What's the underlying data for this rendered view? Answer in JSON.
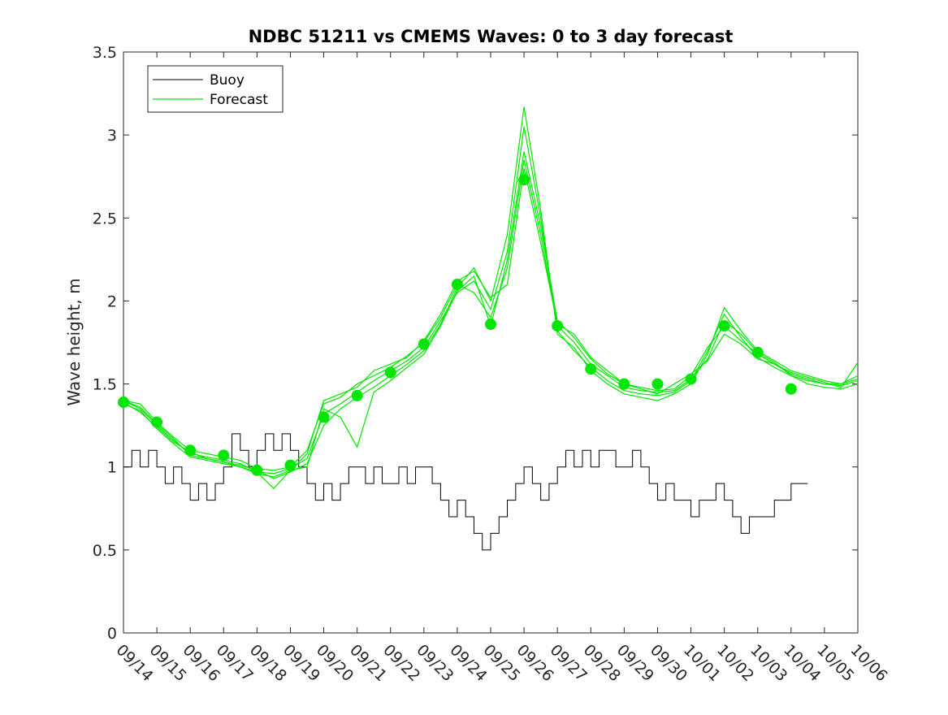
{
  "chart_data": {
    "type": "line",
    "title": "NDBC 51211 vs CMEMS Waves: 0 to 3 day forecast",
    "xlabel": "",
    "ylabel": "Wave height, m",
    "ylim": [
      0,
      3.5
    ],
    "yticks": [
      "0",
      "0.5",
      "1",
      "1.5",
      "2",
      "2.5",
      "3",
      "3.5"
    ],
    "xlim": [
      "09/14",
      "10/06"
    ],
    "xticks": [
      "09/14",
      "09/15",
      "09/16",
      "09/17",
      "09/18",
      "09/19",
      "09/20",
      "09/21",
      "09/22",
      "09/23",
      "09/24",
      "09/25",
      "09/26",
      "09/27",
      "09/28",
      "09/29",
      "09/30",
      "10/01",
      "10/02",
      "10/03",
      "10/04",
      "10/05",
      "10/06"
    ],
    "grid": false,
    "legend": {
      "placement": "top-left",
      "entries": [
        {
          "label": "Buoy",
          "color": "#000000"
        },
        {
          "label": "Forecast",
          "color": "#00e600"
        }
      ]
    },
    "colors": {
      "buoy": "#000000",
      "forecast": "#00e600",
      "axes": "#262626"
    },
    "series": [
      {
        "name": "Buoy",
        "x": [
          0,
          0.25,
          0.5,
          0.75,
          1,
          1.25,
          1.5,
          1.75,
          2,
          2.25,
          2.5,
          2.75,
          3,
          3.25,
          3.5,
          3.75,
          4,
          4.25,
          4.5,
          4.75,
          5,
          5.25,
          5.5,
          5.75,
          6,
          6.25,
          6.5,
          6.75,
          7,
          7.25,
          7.5,
          7.75,
          8,
          8.25,
          8.5,
          8.75,
          9,
          9.25,
          9.5,
          9.75,
          10,
          10.25,
          10.5,
          10.75,
          11,
          11.25,
          11.5,
          11.75,
          12,
          12.25,
          12.5,
          12.75,
          13,
          13.25,
          13.5,
          13.75,
          14,
          14.25,
          14.5,
          14.75,
          15,
          15.25,
          15.5,
          15.75,
          16,
          16.25,
          16.5,
          16.75,
          17,
          17.25,
          17.5,
          17.75,
          18,
          18.25,
          18.5,
          18.75,
          19,
          19.25,
          19.5,
          19.75,
          20,
          20.25
        ],
        "y": [
          1.0,
          1.1,
          1.0,
          1.1,
          1.0,
          0.9,
          1.0,
          0.9,
          0.8,
          0.9,
          0.8,
          0.9,
          1.0,
          1.2,
          1.1,
          1.0,
          1.1,
          1.2,
          1.1,
          1.2,
          1.1,
          1.0,
          0.9,
          0.8,
          0.9,
          0.8,
          0.9,
          1.0,
          1.0,
          0.9,
          1.0,
          0.9,
          0.9,
          1.0,
          0.9,
          1.0,
          1.0,
          0.9,
          0.8,
          0.7,
          0.8,
          0.7,
          0.6,
          0.5,
          0.6,
          0.7,
          0.8,
          0.9,
          1.0,
          0.9,
          0.8,
          0.9,
          1.0,
          1.1,
          1.0,
          1.1,
          1.0,
          1.1,
          1.1,
          1.0,
          1.0,
          1.1,
          1.0,
          0.9,
          0.8,
          0.9,
          0.8,
          0.8,
          0.7,
          0.8,
          0.8,
          0.9,
          0.8,
          0.7,
          0.6,
          0.7,
          0.7,
          0.7,
          0.8,
          0.8,
          0.9,
          0.9
        ]
      },
      {
        "name": "Forecast",
        "x": [
          0,
          1,
          2,
          3,
          4,
          5,
          6,
          7,
          8,
          9,
          10,
          11,
          12,
          13,
          14,
          15,
          16,
          17,
          18,
          19,
          20
        ],
        "y": [
          1.39,
          1.27,
          1.1,
          1.07,
          0.98,
          1.01,
          1.3,
          1.43,
          1.57,
          1.74,
          2.1,
          1.86,
          2.73,
          1.85,
          1.59,
          1.5,
          1.5,
          1.53,
          1.85,
          1.69,
          1.47
        ]
      },
      {
        "x": [
          0,
          0.5,
          1,
          1.5,
          2,
          2.5,
          3,
          3.5,
          4,
          4.5,
          5,
          5.5,
          6,
          6.5,
          7,
          7.5,
          8,
          8.5,
          9,
          9.5,
          10,
          10.5,
          11,
          11.5,
          12,
          12.5,
          13,
          13.5,
          14,
          14.5,
          15,
          15.5,
          16,
          16.5,
          17,
          17.5,
          18,
          18.5,
          19,
          19.5,
          20,
          20.5,
          21,
          21.5,
          22
        ],
        "y": [
          1.4,
          1.38,
          1.27,
          1.18,
          1.1,
          1.08,
          1.06,
          1.04,
          0.99,
          0.98,
          1.0,
          1.1,
          1.38,
          1.42,
          1.5,
          1.55,
          1.6,
          1.67,
          1.75,
          1.9,
          2.1,
          2.05,
          1.9,
          2.2,
          2.85,
          2.4,
          1.85,
          1.75,
          1.62,
          1.55,
          1.48,
          1.46,
          1.45,
          1.46,
          1.53,
          1.65,
          1.88,
          1.8,
          1.69,
          1.63,
          1.55,
          1.52,
          1.5,
          1.5,
          1.53
        ]
      },
      {
        "x": [
          0,
          0.5,
          1,
          1.5,
          2,
          2.5,
          3,
          3.5,
          4,
          4.5,
          5,
          5.5,
          6,
          6.5,
          7,
          7.5,
          8,
          8.5,
          9,
          9.5,
          10,
          10.5,
          11,
          11.5,
          12,
          12.5,
          13,
          13.5,
          14,
          14.5,
          15,
          15.5,
          16,
          16.5,
          17,
          17.5,
          18,
          18.5,
          19,
          19.5,
          20,
          20.5,
          21,
          21.5,
          22
        ],
        "y": [
          1.4,
          1.35,
          1.25,
          1.16,
          1.08,
          1.06,
          1.04,
          1.02,
          0.97,
          0.96,
          0.99,
          1.05,
          1.32,
          1.38,
          1.45,
          1.52,
          1.58,
          1.64,
          1.72,
          1.88,
          2.05,
          2.12,
          1.95,
          2.3,
          3.05,
          2.5,
          1.82,
          1.7,
          1.6,
          1.52,
          1.46,
          1.44,
          1.43,
          1.45,
          1.52,
          1.7,
          1.92,
          1.78,
          1.66,
          1.6,
          1.55,
          1.5,
          1.48,
          1.47,
          1.5
        ]
      },
      {
        "x": [
          0,
          0.5,
          1,
          1.5,
          2,
          2.5,
          3,
          3.5,
          4,
          4.5,
          5,
          5.5,
          6,
          6.5,
          7,
          7.5,
          8,
          8.5,
          9,
          9.5,
          10,
          10.5,
          11,
          11.5,
          12,
          12.5,
          13,
          13.5,
          14,
          14.5,
          15,
          15.5,
          16,
          16.5,
          17,
          17.5,
          18,
          18.5,
          19,
          19.5,
          20,
          20.5,
          21,
          21.5,
          22
        ],
        "y": [
          1.39,
          1.33,
          1.24,
          1.15,
          1.09,
          1.05,
          1.03,
          1.01,
          0.98,
          0.93,
          0.97,
          1.02,
          1.25,
          1.35,
          1.42,
          1.48,
          1.55,
          1.62,
          1.7,
          1.86,
          2.08,
          2.2,
          2.0,
          2.4,
          3.17,
          2.55,
          1.8,
          1.72,
          1.58,
          1.5,
          1.44,
          1.42,
          1.4,
          1.44,
          1.5,
          1.68,
          1.96,
          1.82,
          1.7,
          1.64,
          1.58,
          1.55,
          1.52,
          1.5,
          1.55
        ]
      },
      {
        "x": [
          0,
          0.5,
          1,
          1.5,
          2,
          2.5,
          3,
          3.5,
          4,
          4.5,
          5,
          5.5,
          6,
          6.5,
          7,
          7.5,
          8,
          8.5,
          9,
          9.5,
          10,
          10.5,
          11,
          11.5,
          12,
          12.5,
          13,
          13.5,
          14,
          14.5,
          15,
          15.5,
          16,
          16.5,
          17,
          17.5,
          18,
          18.5,
          19,
          19.5,
          20,
          20.5,
          21,
          21.5,
          22
        ],
        "y": [
          1.4,
          1.36,
          1.26,
          1.17,
          1.07,
          1.05,
          1.03,
          1.0,
          0.97,
          0.87,
          0.98,
          1.0,
          1.35,
          1.3,
          1.12,
          1.45,
          1.52,
          1.6,
          1.68,
          1.85,
          2.06,
          2.15,
          1.85,
          2.25,
          2.9,
          2.45,
          1.88,
          1.78,
          1.65,
          1.56,
          1.5,
          1.48,
          1.46,
          1.47,
          1.55,
          1.72,
          1.85,
          1.76,
          1.68,
          1.62,
          1.56,
          1.53,
          1.5,
          1.49,
          1.52
        ]
      },
      {
        "x": [
          0,
          0.5,
          1,
          1.5,
          2,
          2.5,
          3,
          3.5,
          4,
          4.5,
          5,
          5.5,
          6,
          6.5,
          7,
          7.5,
          8,
          8.5,
          9,
          9.5,
          10,
          10.5,
          11,
          11.5,
          12,
          12.5,
          13,
          13.5,
          14,
          14.5,
          15,
          15.5,
          16,
          16.5,
          17,
          17.5,
          18,
          18.5,
          19,
          19.5,
          20,
          20.5,
          21,
          21.5,
          22
        ],
        "y": [
          1.38,
          1.34,
          1.23,
          1.14,
          1.06,
          1.04,
          1.02,
          1.0,
          0.96,
          0.94,
          0.98,
          1.08,
          1.4,
          1.44,
          1.48,
          1.58,
          1.62,
          1.66,
          1.76,
          1.92,
          2.12,
          2.18,
          2.02,
          2.1,
          2.8,
          2.35,
          1.86,
          1.8,
          1.66,
          1.58,
          1.5,
          1.47,
          1.44,
          1.5,
          1.56,
          1.64,
          1.8,
          1.74,
          1.65,
          1.62,
          1.57,
          1.54,
          1.51,
          1.48,
          1.63
        ]
      }
    ]
  }
}
